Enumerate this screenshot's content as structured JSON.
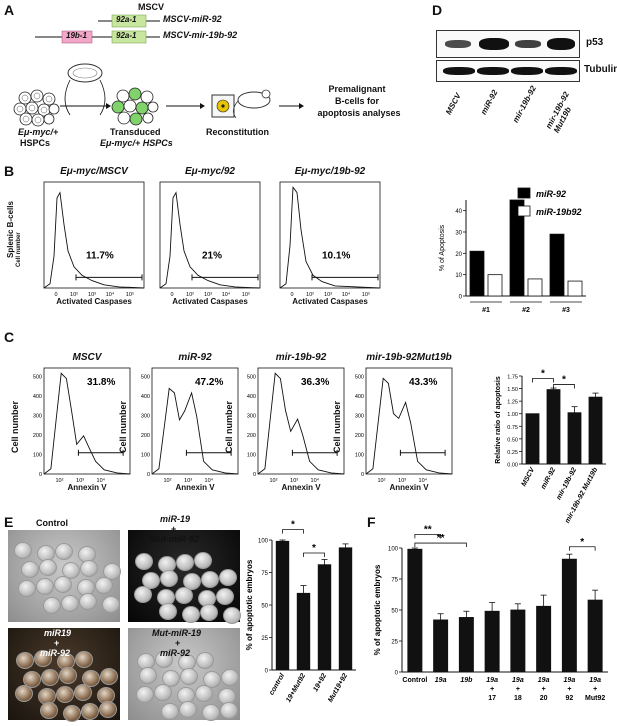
{
  "panels": {
    "A": "A",
    "B": "B",
    "C": "C",
    "D": "D",
    "E": "E",
    "F": "F"
  },
  "panel_a": {
    "vector": "MSCV",
    "construct_92_label": "92a-1",
    "construct_92_name": "MSCV-miR-92",
    "construct_19b_label": "19b-1",
    "construct_19b92_label": "92a-1",
    "construct_19b92_name": "MSCV-mir-19b-92",
    "hspc_label_1": "Eμ-myc/+",
    "hspc_label_2": "HSPCs",
    "transduced_label_1": "Transduced",
    "transduced_label_2": "Eμ-myc/+ HSPCs",
    "reconstitution": "Reconstitution",
    "outcome_1": "Premalignant",
    "outcome_2": "B-cells for",
    "outcome_3": "apoptosis analyses"
  },
  "panel_b": {
    "row_label": "Splenic B-cells",
    "ylabel": "Cell number",
    "xlabel": "Activated Caspases",
    "plots": [
      {
        "title": "Eμ-myc/MSCV",
        "percent": "11.7%"
      },
      {
        "title": "Eμ-myc/92",
        "percent": "21%"
      },
      {
        "title": "Eμ-myc/19b-92",
        "percent": "10.1%"
      }
    ],
    "xticks": [
      "0",
      "10²",
      "10³",
      "10⁴",
      "10⁵"
    ]
  },
  "panel_c": {
    "ylabel": "Cell number",
    "xlabel": "Annexin V",
    "plots": [
      {
        "title": "MSCV",
        "percent": "31.8%"
      },
      {
        "title": "miR-92",
        "percent": "47.2%"
      },
      {
        "title": "mir-19b-92",
        "percent": "36.3%"
      },
      {
        "title": "mir-19b-92Mut19b",
        "percent": "43.3%"
      }
    ],
    "yticks": [
      "0",
      "100",
      "200",
      "300",
      "400",
      "500"
    ],
    "xticks": [
      "10²",
      "10³",
      "10⁴"
    ]
  },
  "panel_d": {
    "blot_labels": [
      "p53",
      "Tubulin"
    ],
    "lanes": [
      "MSCV",
      "miR-92",
      "mir-19b-92",
      "mir-19b-92 Mut19b"
    ]
  },
  "colors": {
    "black_bar": "#000000",
    "white_bar": "#ffffff"
  },
  "chart_data": [
    {
      "id": "D",
      "type": "bar",
      "ylabel": "% of Apoptosis",
      "categories": [
        "#1",
        "#2",
        "#3"
      ],
      "series": [
        {
          "name": "miR-92",
          "values": [
            21,
            45,
            29
          ]
        },
        {
          "name": "miR-19b92",
          "values": [
            10,
            8,
            7
          ]
        }
      ],
      "ylim": [
        0,
        45
      ],
      "yticks": [
        0,
        10,
        20,
        30,
        40
      ],
      "legend": "top-right"
    },
    {
      "id": "C",
      "type": "bar",
      "ylabel": "Relative ratio of apoptosis",
      "categories": [
        "MSCV",
        "miR-92",
        "mir-19b-92",
        "mir-19b-92 Mut19b"
      ],
      "values": [
        1.0,
        1.48,
        1.02,
        1.33
      ],
      "errors": [
        0.0,
        0.03,
        0.12,
        0.08
      ],
      "ylim": [
        0,
        1.75
      ],
      "yticks": [
        0,
        0.25,
        0.5,
        0.75,
        1.0,
        1.25,
        1.5,
        1.75
      ],
      "significance": [
        "*",
        "*"
      ]
    },
    {
      "id": "E",
      "type": "bar",
      "ylabel": "% of apoptotic embryos",
      "categories": [
        "control",
        "19+Mut92",
        "19+92",
        "Mut19+92"
      ],
      "values": [
        99,
        59,
        81,
        94
      ],
      "errors": [
        1,
        6,
        4,
        3
      ],
      "ylim": [
        0,
        100
      ],
      "yticks": [
        0,
        25,
        50,
        75,
        100
      ],
      "significance": [
        "*",
        "*"
      ]
    },
    {
      "id": "F",
      "type": "bar",
      "ylabel": "% of apoptotic embryos",
      "categories": [
        "Control",
        "19a",
        "19b",
        "19a + 17",
        "19a + 18",
        "19a + 20",
        "19a + 92",
        "19a + Mut92"
      ],
      "values": [
        99,
        42,
        44,
        49,
        50,
        53,
        91,
        58
      ],
      "errors": [
        1,
        5,
        5,
        7,
        5,
        9,
        4,
        8
      ],
      "ylim": [
        0,
        100
      ],
      "yticks": [
        0,
        25,
        50,
        75,
        100
      ],
      "significance": [
        "**",
        "**",
        "*"
      ]
    }
  ],
  "panel_e": {
    "photo_labels": [
      "Control",
      "miR-19",
      "+",
      "Mut-miR-92",
      "miR19",
      "+",
      "miR-92",
      "Mut-miR-19",
      "+",
      "miR-92"
    ]
  }
}
